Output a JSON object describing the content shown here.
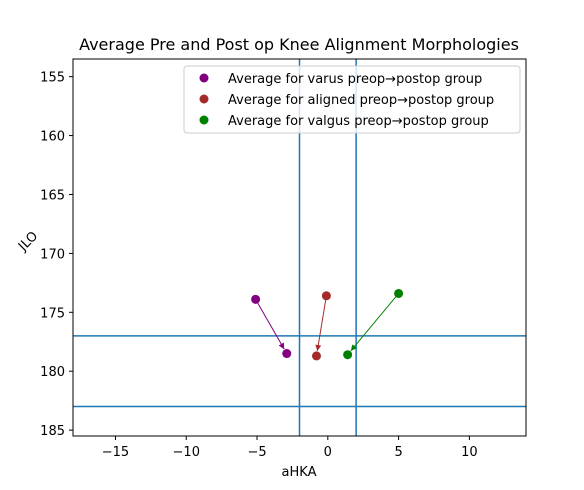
{
  "chart_data": {
    "type": "scatter",
    "title": "Average Pre and Post op Knee Alignment Morphologies",
    "xlabel": "aHKA",
    "ylabel": "JLO",
    "xlim": [
      -18,
      14
    ],
    "ylim": [
      185.5,
      153.5
    ],
    "y_inverted": true,
    "xticks": [
      -15,
      -10,
      -5,
      0,
      5,
      10
    ],
    "yticks": [
      155,
      160,
      165,
      170,
      175,
      180,
      185
    ],
    "xtick_labels": [
      "−15",
      "−10",
      "−5",
      "0",
      "5",
      "10"
    ],
    "ytick_labels": [
      "155",
      "160",
      "165",
      "170",
      "175",
      "180",
      "185"
    ],
    "grid": false,
    "legend_position": "upper right",
    "reference_lines": {
      "color": "#1f77b4",
      "vertical_x": [
        -2,
        2
      ],
      "horizontal_y": [
        177,
        183
      ]
    },
    "series": [
      {
        "name": "Average for varus preop→postop group",
        "color": "#800080",
        "preop": {
          "x": -5.1,
          "y": 173.9
        },
        "postop": {
          "x": -2.9,
          "y": 178.5
        }
      },
      {
        "name": "Average for aligned preop→postop group",
        "color": "#a52a2a",
        "preop": {
          "x": -0.1,
          "y": 173.6
        },
        "postop": {
          "x": -0.8,
          "y": 178.7
        }
      },
      {
        "name": "Average for valgus preop→postop group",
        "color": "#008000",
        "preop": {
          "x": 5.0,
          "y": 173.4
        },
        "postop": {
          "x": 1.4,
          "y": 178.6
        }
      }
    ]
  }
}
